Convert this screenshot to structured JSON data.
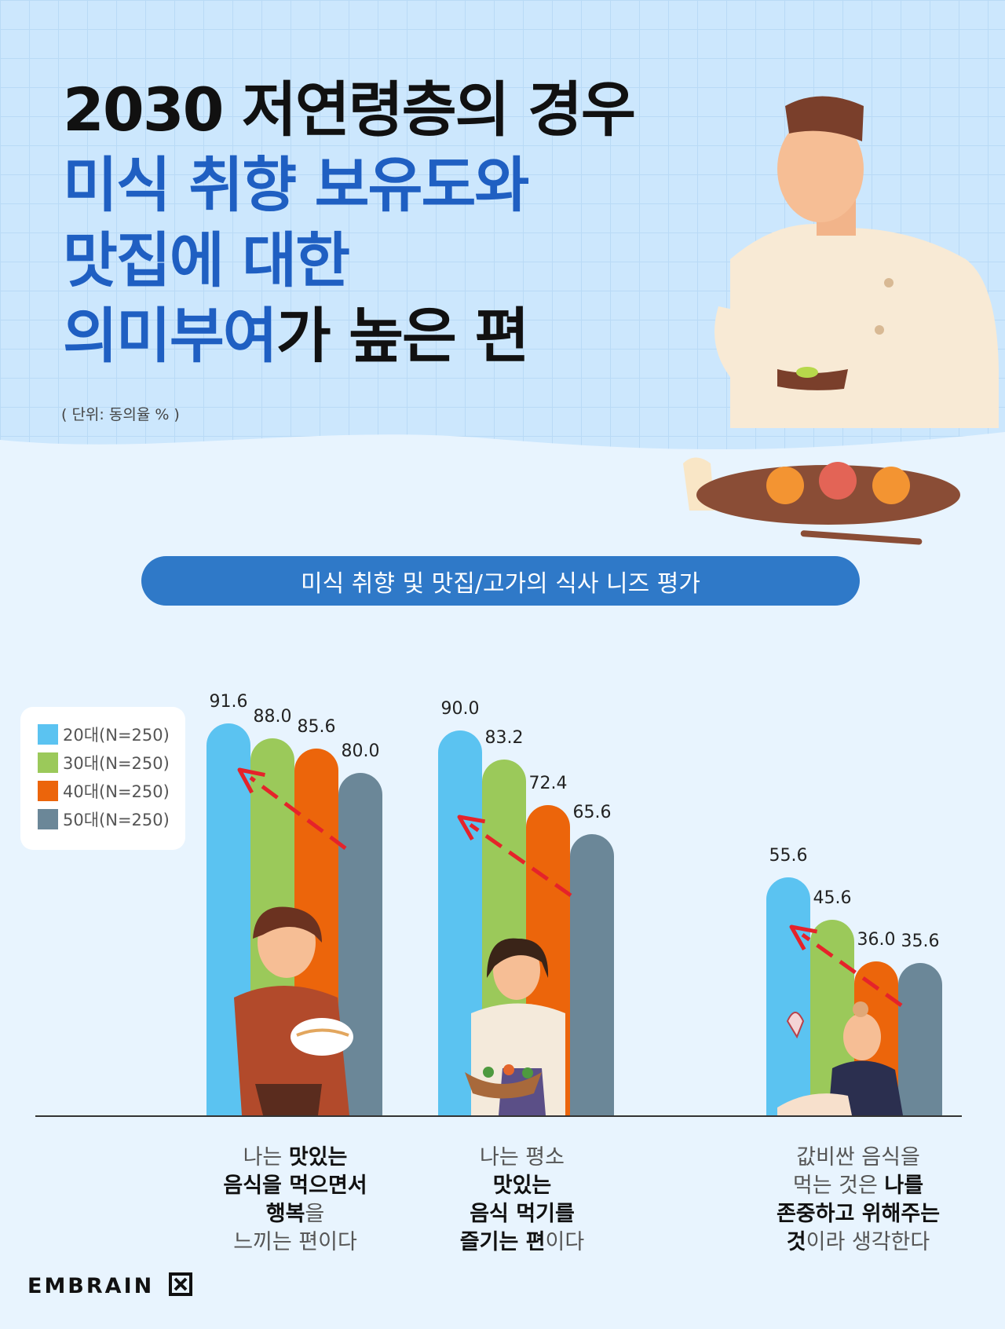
{
  "title": {
    "line1": "2030 저연령층의 경우",
    "line2": "미식 취향 보유도와",
    "line3": "맛집에 대한",
    "line4_highlight": "의미부여",
    "line4_rest": "가 높은 편"
  },
  "unit_note": "( 단위: 동의율 % )",
  "section_label": "미식 취향 및 맛집/고가의 식사 니즈  평가",
  "brand": "EMBRAIN",
  "colors": {
    "c20": "#5bc3f1",
    "c30": "#9bc95a",
    "c40": "#ec650b",
    "c50": "#6b8798",
    "arrow": "#e5232a"
  },
  "chart_data": {
    "type": "bar",
    "legend_position": "top-left",
    "ylim": [
      0,
      100
    ],
    "grid": false,
    "series": [
      {
        "name": "20대(N=250)",
        "values": [
          91.6,
          90.0,
          55.6
        ]
      },
      {
        "name": "30대(N=250)",
        "values": [
          88.0,
          83.2,
          45.6
        ]
      },
      {
        "name": "40대(N=250)",
        "values": [
          85.6,
          72.4,
          36.0
        ]
      },
      {
        "name": "50대(N=250)",
        "values": [
          80.0,
          65.6,
          35.6
        ]
      }
    ],
    "value_labels": [
      [
        "91.6",
        "88.0",
        "85.6",
        "80.0"
      ],
      [
        "90.0",
        "83.2",
        "72.4",
        "65.6"
      ],
      [
        "55.6",
        "45.6",
        "36.0",
        "35.6"
      ]
    ],
    "categories": [
      "나는 맛있는 음식을 먹으면서 행복을 느끼는 편이다",
      "나는 평소 맛있는 음식 먹기를 즐기는 편이다",
      "값비싼 음식을 먹는 것은 나를 존중하고 위해주는 것이라 생각한다"
    ],
    "category_captions": [
      [
        [
          {
            "t": "나는 ",
            "b": false
          },
          {
            "t": "맛있는",
            "b": true
          }
        ],
        [
          {
            "t": "음식을 먹으면서",
            "b": true
          }
        ],
        [
          {
            "t": "행복",
            "b": true
          },
          {
            "t": "을",
            "b": false
          }
        ],
        [
          {
            "t": "느끼는 편이다",
            "b": false
          }
        ]
      ],
      [
        [
          {
            "t": "나는 평소",
            "b": false
          }
        ],
        [
          {
            "t": "맛있는",
            "b": true
          }
        ],
        [
          {
            "t": "음식 먹기를",
            "b": true
          }
        ],
        [
          {
            "t": "즐기는 편",
            "b": true
          },
          {
            "t": "이다",
            "b": false
          }
        ]
      ],
      [
        [
          {
            "t": "값비싼 음식을",
            "b": false
          }
        ],
        [
          {
            "t": "먹는 것은 ",
            "b": false
          },
          {
            "t": "나를",
            "b": true
          }
        ],
        [
          {
            "t": "존중하고 위해주는",
            "b": true
          }
        ],
        [
          {
            "t": "것",
            "b": true
          },
          {
            "t": "이라 생각한다",
            "b": false
          }
        ]
      ]
    ]
  }
}
